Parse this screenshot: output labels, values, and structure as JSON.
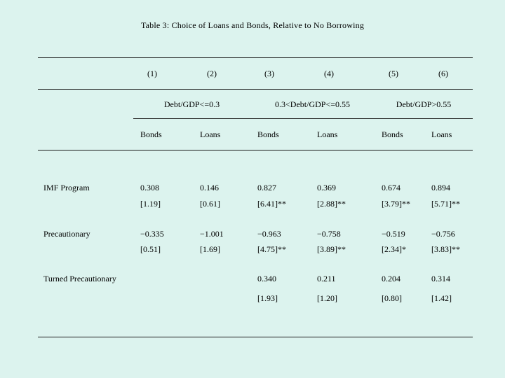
{
  "colors": {
    "background": "#dcf3ee",
    "rule": "#1a1a1a"
  },
  "slide": {
    "title": "Table 3:  Choice of Loans and Bonds, Relative to No Borrowing"
  },
  "table": {
    "column_numbers": [
      "(1)",
      "(2)",
      "(3)",
      "(4)",
      "(5)",
      "(6)"
    ],
    "group_headers": [
      "Debt/GDP<=0.3",
      "0.3<Debt/GDP<=0.55",
      "Debt/GDP>0.55"
    ],
    "column_types": [
      "Bonds",
      "Loans",
      "Bonds",
      "Loans",
      "Bonds",
      "Loans"
    ],
    "rows": [
      {
        "label": "IMF Program",
        "coefs": [
          "0.308",
          "0.146",
          "0.827",
          "0.369",
          "0.674",
          "0.894"
        ],
        "tstats": [
          "[1.19]",
          "[0.61]",
          "[6.41]**",
          "[2.88]**",
          "[3.79]**",
          "[5.71]**"
        ]
      },
      {
        "label": "Precautionary",
        "coefs": [
          "−0.335",
          "−1.001",
          "−0.963",
          "−0.758",
          "−0.519",
          "−0.756"
        ],
        "tstats": [
          "[0.51]",
          "[1.69]",
          "[4.75]**",
          "[3.89]**",
          "[2.34]*",
          "[3.83]**"
        ]
      },
      {
        "label": "Turned Precautionary",
        "coefs": [
          "",
          "",
          "0.340",
          "0.211",
          "0.204",
          "0.314"
        ],
        "tstats": [
          "",
          "",
          "[1.93]",
          "[1.20]",
          "[0.80]",
          "[1.42]"
        ]
      }
    ]
  }
}
